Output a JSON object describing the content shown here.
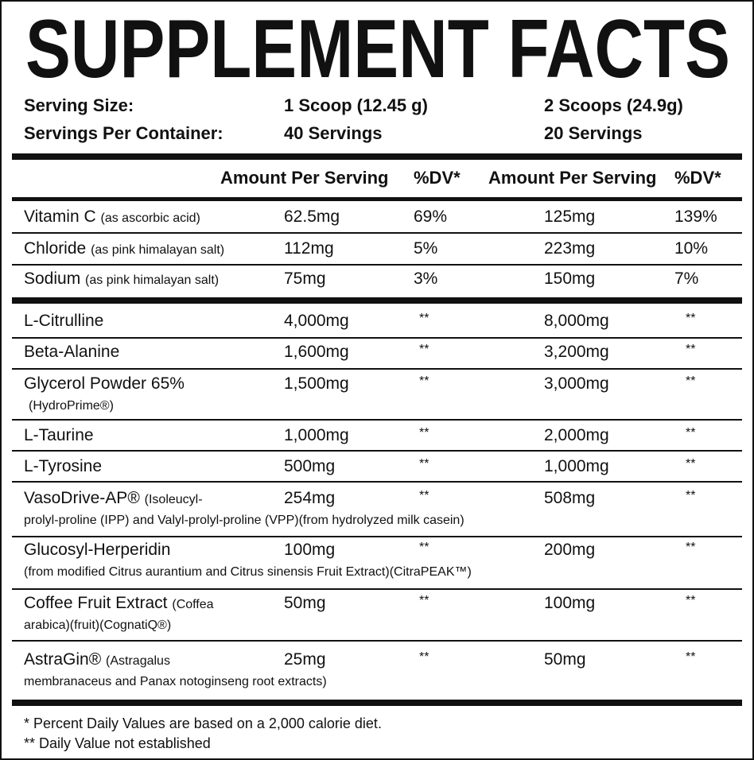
{
  "title": "SUPPLEMENT FACTS",
  "serving": [
    [
      "Serving Size:",
      "1 Scoop (12.45 g)",
      "2 Scoops (24.9g)"
    ],
    [
      "Servings Per Container:",
      "40 Servings",
      "20 Servings"
    ]
  ],
  "header": [
    "Amount Per Serving",
    "%DV*",
    "Amount Per Serving",
    "%DV*"
  ],
  "vitamins": [
    {
      "name": "Vitamin C",
      "note": "(as ascorbic acid)",
      "amount1": "62.5mg",
      "dv1": "69%",
      "amount2": "125mg",
      "dv2": "139%"
    },
    {
      "name": "Chloride",
      "note": "(as pink himalayan salt)",
      "amount1": "112mg",
      "dv1": "5%",
      "amount2": "223mg",
      "dv2": "10%"
    },
    {
      "name": "Sodium",
      "note": "(as pink himalayan salt)",
      "amount1": "75mg",
      "dv1": "3%",
      "amount2": "150mg",
      "dv2": "7%"
    }
  ],
  "ingredients": [
    {
      "name": "L-Citrulline",
      "amount1": "4,000mg",
      "dv1": "**",
      "amount2": "8,000mg",
      "dv2": "**"
    },
    {
      "name": "Beta-Alanine",
      "amount1": "1,600mg",
      "dv1": "**",
      "amount2": "3,200mg",
      "dv2": "**"
    },
    {
      "name": "Glycerol Powder 65%",
      "detail": "(HydroPrime®)",
      "amount1": "1,500mg",
      "dv1": "**",
      "amount2": "3,000mg",
      "dv2": "**"
    },
    {
      "name": "L-Taurine",
      "amount1": "1,000mg",
      "dv1": "**",
      "amount2": "2,000mg",
      "dv2": "**"
    },
    {
      "name": "L-Tyrosine",
      "amount1": "500mg",
      "dv1": "**",
      "amount2": "1,000mg",
      "dv2": "**"
    },
    {
      "name": "VasoDrive-AP®",
      "note": "(Isoleucyl-",
      "detail": "prolyl-proline (IPP) and Valyl-prolyl-proline (VPP)(from hydrolyzed milk casein)",
      "amount1": "254mg",
      "dv1": "**",
      "amount2": "508mg",
      "dv2": "**"
    },
    {
      "name": "Glucosyl-Herperidin",
      "detail": "(from modified Citrus aurantium and Citrus sinensis Fruit Extract)(CitraPEAK™)",
      "amount1": "100mg",
      "dv1": "**",
      "amount2": "200mg",
      "dv2": "**"
    },
    {
      "name": "Coffee Fruit Extract",
      "note": "(Coffea",
      "detail": "arabica)(fruit)(CognatiQ®)",
      "amount1": "50mg",
      "dv1": "**",
      "amount2": "100mg",
      "dv2": "**"
    },
    {
      "name": "AstraGin®",
      "note": "(Astragalus",
      "detail": "membranaceus and Panax notoginseng root extracts)",
      "amount1": "25mg",
      "dv1": "**",
      "amount2": "50mg",
      "dv2": "**"
    }
  ],
  "footnotes": [
    "* Percent Daily Values are based on a 2,000 calorie diet.",
    "** Daily Value not established"
  ]
}
